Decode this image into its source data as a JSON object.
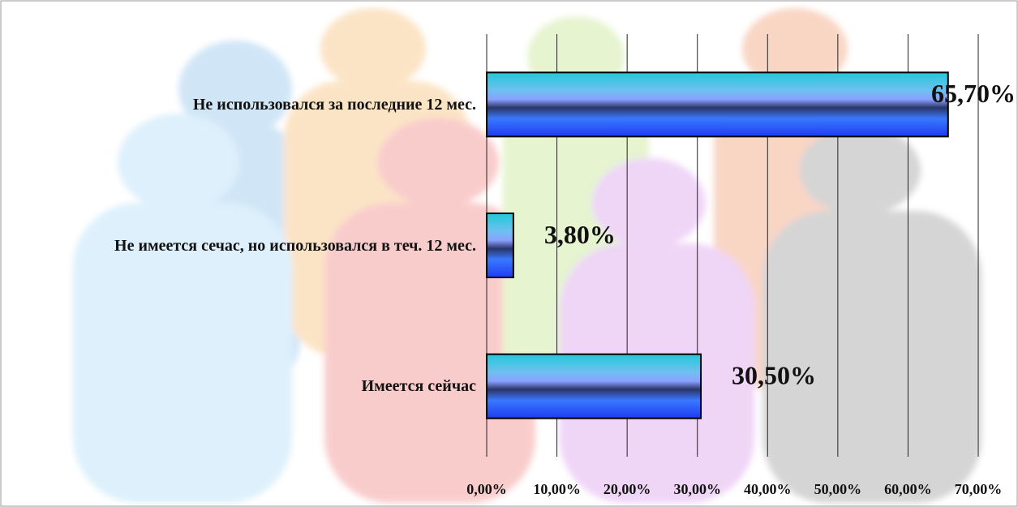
{
  "chart_data": {
    "type": "bar",
    "orientation": "horizontal",
    "categories": [
      "Не использовался за последние 12 мес.",
      "Не имеется сечас, но использовался в теч. 12 мес.",
      "Имеется сейчас"
    ],
    "values": [
      65.7,
      3.8,
      30.5
    ],
    "value_labels": [
      "65,70%",
      "3,80%",
      "30,50%"
    ],
    "xlim": [
      0,
      70
    ],
    "xticks": [
      {
        "value": 0,
        "label": "0,00%"
      },
      {
        "value": 10,
        "label": "10,00%"
      },
      {
        "value": 20,
        "label": "20,00%"
      },
      {
        "value": 30,
        "label": "30,00%"
      },
      {
        "value": 40,
        "label": "40,00%"
      },
      {
        "value": 50,
        "label": "50,00%"
      },
      {
        "value": 60,
        "label": "60,00%"
      },
      {
        "value": 70,
        "label": "70,00%"
      }
    ],
    "grid": true
  }
}
